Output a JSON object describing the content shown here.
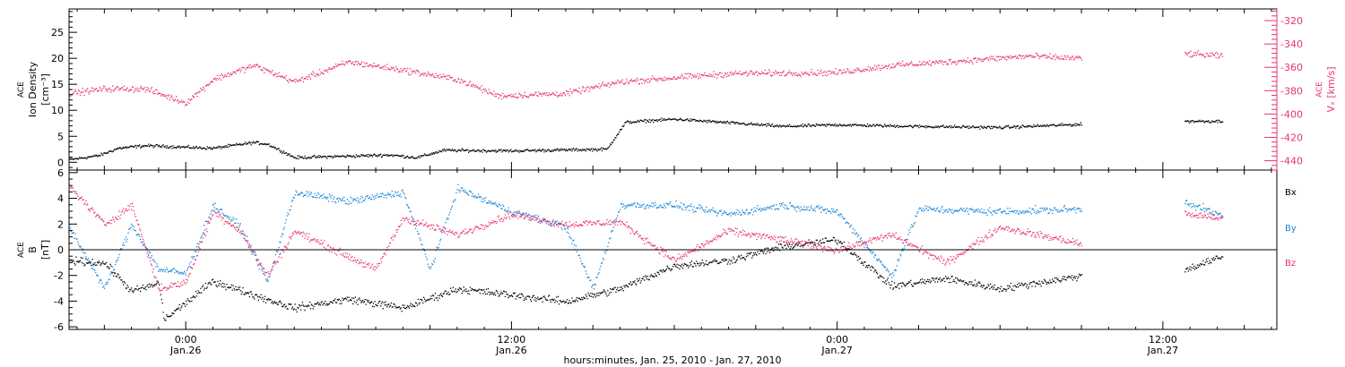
{
  "chart_data": {
    "type": "scatter",
    "time_axis": {
      "label": "hours:minutes, Jan. 25, 2010 - Jan. 27, 2010",
      "range_hours": [
        -4.3,
        40.2
      ],
      "ticks": [
        {
          "hour": 0,
          "time": "0:00",
          "date": "Jan.26"
        },
        {
          "hour": 12,
          "time": "12:00",
          "date": "Jan.26"
        },
        {
          "hour": 24,
          "time": "0:00",
          "date": "Jan.27"
        },
        {
          "hour": 36,
          "time": "12:00",
          "date": "Jan.27"
        }
      ],
      "data_gap_hours": [
        33.0,
        36.8
      ]
    },
    "panels": [
      {
        "id": "density-velocity",
        "left_axis": {
          "label_lines": [
            "ACE",
            "Ion Density",
            "[cm⁻³]"
          ],
          "range": [
            -1.5,
            29.5
          ],
          "ticks": [
            0,
            5,
            10,
            15,
            20,
            25
          ],
          "color": "#000000"
        },
        "right_axis": {
          "label_lines": [
            "ACE",
            "Vₓ [km/s]"
          ],
          "range": [
            -448,
            -310
          ],
          "ticks": [
            -440,
            -420,
            -400,
            -380,
            -360,
            -340,
            -320
          ],
          "color": "#e8336d"
        },
        "series": [
          {
            "color": "#000000",
            "axis": "left",
            "data_end_hour": 38.2,
            "keypoints": [
              [
                -4.3,
                0.6
              ],
              [
                -3.2,
                1.4
              ],
              [
                -2.5,
                2.8
              ],
              [
                -1.5,
                3.3
              ],
              [
                0,
                3.0
              ],
              [
                1.0,
                2.8
              ],
              [
                2.5,
                3.9
              ],
              [
                3.0,
                3.6
              ],
              [
                4.0,
                1.0
              ],
              [
                7.5,
                1.5
              ],
              [
                8.5,
                1.0
              ],
              [
                9.5,
                2.4
              ],
              [
                12.0,
                2.3
              ],
              [
                15.5,
                2.6
              ],
              [
                16.2,
                7.8
              ],
              [
                18.0,
                8.4
              ],
              [
                22.0,
                7.0
              ],
              [
                24.0,
                7.3
              ],
              [
                27.0,
                7.0
              ],
              [
                30.0,
                6.8
              ],
              [
                33.0,
                7.4
              ],
              [
                36.8,
                8.0
              ],
              [
                38.2,
                8.0
              ]
            ]
          },
          {
            "color": "#e8336d",
            "axis": "right",
            "data_end_hour": 38.2,
            "keypoints": [
              [
                -4.3,
                -382
              ],
              [
                -3.0,
                -378
              ],
              [
                -1.5,
                -378
              ],
              [
                0,
                -390
              ],
              [
                1.0,
                -370
              ],
              [
                2.5,
                -358
              ],
              [
                4.0,
                -372
              ],
              [
                6.0,
                -355
              ],
              [
                8.0,
                -362
              ],
              [
                10.0,
                -370
              ],
              [
                11.5,
                -384
              ],
              [
                14.0,
                -382
              ],
              [
                16.0,
                -372
              ],
              [
                20.0,
                -365
              ],
              [
                24.0,
                -364
              ],
              [
                26.0,
                -358
              ],
              [
                28.0,
                -355
              ],
              [
                31.0,
                -350
              ],
              [
                33.0,
                -352
              ],
              [
                36.8,
                -348
              ],
              [
                38.2,
                -350
              ]
            ]
          }
        ]
      },
      {
        "id": "magnetic-field",
        "left_axis": {
          "label_lines": [
            "ACE",
            "B",
            "[nT]"
          ],
          "range": [
            -6.2,
            6.2
          ],
          "ticks": [
            -6,
            -4,
            -2,
            0,
            2,
            4,
            6
          ],
          "color": "#000000"
        },
        "zero_line": true,
        "legend": {
          "placement": "right",
          "labels": [
            "Bx",
            "By",
            "Bz"
          ]
        },
        "series": [
          {
            "name": "Bx",
            "color": "#000000",
            "data_end_hour": 38.2,
            "keypoints": [
              [
                -4.3,
                -0.8
              ],
              [
                -3.0,
                -1.0
              ],
              [
                -2.0,
                -3.2
              ],
              [
                -1.0,
                -2.6
              ],
              [
                -0.8,
                -5.4
              ],
              [
                1.0,
                -2.4
              ],
              [
                2.5,
                -3.5
              ],
              [
                4.0,
                -4.5
              ],
              [
                6.0,
                -3.8
              ],
              [
                8.0,
                -4.5
              ],
              [
                10.0,
                -3.0
              ],
              [
                12.0,
                -3.5
              ],
              [
                14.0,
                -4.0
              ],
              [
                16.0,
                -3.0
              ],
              [
                18.0,
                -1.2
              ],
              [
                20.0,
                -0.8
              ],
              [
                22.0,
                0.3
              ],
              [
                24.0,
                0.8
              ],
              [
                26.0,
                -2.8
              ],
              [
                28.0,
                -2.2
              ],
              [
                30.0,
                -3.0
              ],
              [
                33.0,
                -2.0
              ],
              [
                36.8,
                -1.5
              ],
              [
                38.2,
                -0.5
              ]
            ]
          },
          {
            "name": "By",
            "color": "#1a86d8",
            "data_end_hour": 38.2,
            "keypoints": [
              [
                -4.3,
                1.8
              ],
              [
                -3.0,
                -3.0
              ],
              [
                -2.0,
                2.0
              ],
              [
                -1.0,
                -1.5
              ],
              [
                0,
                -1.8
              ],
              [
                1.0,
                3.5
              ],
              [
                2.0,
                1.8
              ],
              [
                3.0,
                -2.5
              ],
              [
                4.0,
                4.5
              ],
              [
                6.0,
                3.8
              ],
              [
                8.0,
                4.5
              ],
              [
                9.0,
                -1.5
              ],
              [
                10.0,
                4.8
              ],
              [
                12.0,
                3.0
              ],
              [
                14.0,
                1.8
              ],
              [
                15.0,
                -3.0
              ],
              [
                16.0,
                3.5
              ],
              [
                18.0,
                3.5
              ],
              [
                20.0,
                2.8
              ],
              [
                22.0,
                3.5
              ],
              [
                24.0,
                3.0
              ],
              [
                26.0,
                -2.0
              ],
              [
                27.0,
                3.2
              ],
              [
                30.0,
                3.0
              ],
              [
                33.0,
                3.2
              ],
              [
                36.8,
                3.8
              ],
              [
                38.2,
                2.6
              ]
            ]
          },
          {
            "name": "Bz",
            "color": "#e8336d",
            "data_end_hour": 38.2,
            "keypoints": [
              [
                -4.3,
                5.0
              ],
              [
                -3.0,
                2.0
              ],
              [
                -2.0,
                3.5
              ],
              [
                -1.0,
                -3.0
              ],
              [
                0,
                -2.5
              ],
              [
                1.0,
                3.0
              ],
              [
                2.0,
                1.5
              ],
              [
                3.0,
                -2.0
              ],
              [
                4.0,
                1.5
              ],
              [
                6.0,
                -0.5
              ],
              [
                7.0,
                -1.5
              ],
              [
                8.0,
                2.5
              ],
              [
                10.0,
                1.2
              ],
              [
                12.0,
                2.8
              ],
              [
                14.0,
                2.0
              ],
              [
                16.0,
                2.2
              ],
              [
                18.0,
                -0.8
              ],
              [
                20.0,
                1.5
              ],
              [
                22.0,
                0.8
              ],
              [
                24.0,
                0.0
              ],
              [
                26.0,
                1.2
              ],
              [
                28.0,
                -1.0
              ],
              [
                30.0,
                1.8
              ],
              [
                33.0,
                0.5
              ],
              [
                36.8,
                2.8
              ],
              [
                38.2,
                2.5
              ]
            ]
          }
        ]
      }
    ]
  }
}
